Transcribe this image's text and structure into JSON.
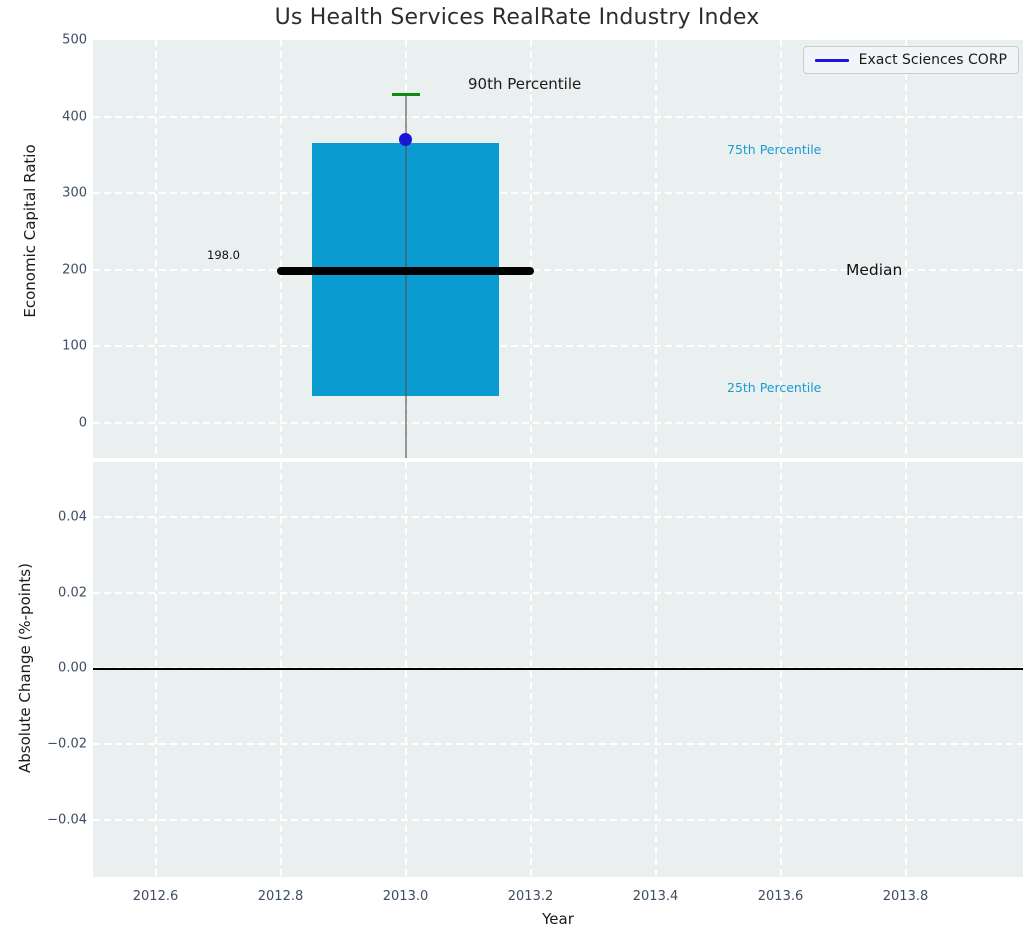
{
  "title": "Us Health Services RealRate Industry Index",
  "legend": {
    "label": "Exact Sciences CORP"
  },
  "colors": {
    "plot_bg": "#eaeff0",
    "grid": "#ffffff",
    "box_fill": "#0a9bd0",
    "whisker": "#555555",
    "cap_90th": "#108a10",
    "median_line": "#000000",
    "company_dot": "#1a16d6",
    "tick_label": "#3d4d63",
    "annotation_cyan": "#1a9cd3",
    "zero_line": "#000000",
    "legend_line": "#1a16e0"
  },
  "annotations": {
    "p90_label": "90th Percentile",
    "p75_label": "75th Percentile",
    "median_label": "Median",
    "p25_label": "25th Percentile",
    "median_value_label": "198.0"
  },
  "chart_data": {
    "type": "boxplot",
    "title": "Us Health Services RealRate Industry Index",
    "xlabel": "Year",
    "xlim": [
      2012.5,
      2013.988
    ],
    "xticks": [
      {
        "v": 2012.6,
        "label": "2012.6"
      },
      {
        "v": 2012.8,
        "label": "2012.8"
      },
      {
        "v": 2013.0,
        "label": "2013.0"
      },
      {
        "v": 2013.2,
        "label": "2013.2"
      },
      {
        "v": 2013.4,
        "label": "2013.4"
      },
      {
        "v": 2013.6,
        "label": "2013.6"
      },
      {
        "v": 2013.8,
        "label": "2013.8"
      }
    ],
    "top_panel": {
      "ylabel": "Economic Capital Ratio",
      "ylim": [
        -46,
        500
      ],
      "grid": true,
      "yticks": [
        {
          "v": 500,
          "label": "500"
        },
        {
          "v": 400,
          "label": "400"
        },
        {
          "v": 300,
          "label": "300"
        },
        {
          "v": 200,
          "label": "200"
        },
        {
          "v": 100,
          "label": "100"
        },
        {
          "v": 0,
          "label": "0"
        }
      ],
      "box": {
        "x_center": 2013.0,
        "box_width": 0.3,
        "median_line_width": 0.41,
        "percentile_25": 35,
        "median": 198.0,
        "percentile_75": 365,
        "percentile_90": 430,
        "lower_whisker_clipped_below_axis": true
      },
      "company_point": {
        "name": "Exact Sciences CORP",
        "x": 2013.0,
        "y": 370
      }
    },
    "bottom_panel": {
      "ylabel": "Absolute Change (%-points)",
      "ylim": [
        -0.0552,
        0.0546
      ],
      "grid": true,
      "yticks": [
        {
          "v": 0.04,
          "label": "0.04"
        },
        {
          "v": 0.02,
          "label": "0.02"
        },
        {
          "v": 0.0,
          "label": "0.00"
        },
        {
          "v": -0.02,
          "label": "−0.02"
        },
        {
          "v": -0.04,
          "label": "−0.04"
        }
      ],
      "zero_line_y": 0.0,
      "series": []
    },
    "legend": {
      "label": "Exact Sciences CORP",
      "position": "upper right"
    }
  }
}
